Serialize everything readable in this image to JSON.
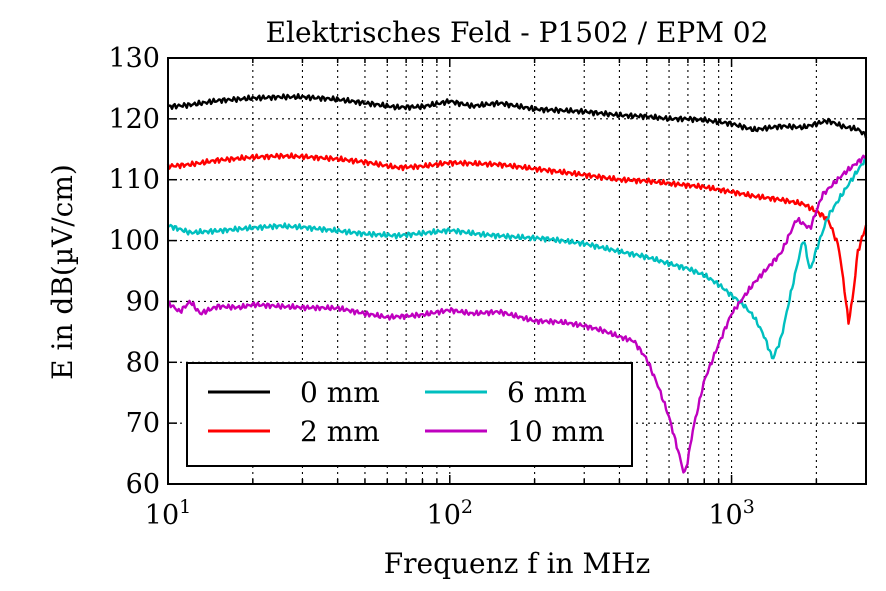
{
  "chart_data": {
    "type": "line",
    "title": "Elektrisches Feld - P1502 / EPM 02",
    "xlabel": "Frequenz f in MHz",
    "ylabel": "E in dB(µV/cm)",
    "xscale": "log",
    "xlim": [
      10,
      3000
    ],
    "ylim": [
      60,
      130
    ],
    "grid": true,
    "legend_position": "lower-left",
    "y_ticks": [
      "60",
      "70",
      "80",
      "90",
      "100",
      "110",
      "120",
      "130"
    ],
    "x_ticks": [
      {
        "base": "10",
        "exp": "1",
        "value": 10
      },
      {
        "base": "10",
        "exp": "2",
        "value": 100
      },
      {
        "base": "10",
        "exp": "3",
        "value": 1000
      }
    ],
    "series": [
      {
        "name": "0 mm",
        "color": "#000000",
        "x": [
          10,
          12,
          15,
          20,
          25,
          30,
          40,
          50,
          65,
          80,
          100,
          120,
          150,
          200,
          300,
          400,
          500,
          600,
          700,
          800,
          1000,
          1200,
          1500,
          1800,
          2000,
          2200,
          2500,
          2800,
          3000
        ],
        "y": [
          122.0,
          122.3,
          123.0,
          123.4,
          123.6,
          123.6,
          123.2,
          122.6,
          121.9,
          122.0,
          122.9,
          122.1,
          122.6,
          121.6,
          121.2,
          120.6,
          120.4,
          120.0,
          120.0,
          119.8,
          119.2,
          118.2,
          118.8,
          118.6,
          119.2,
          119.7,
          118.7,
          118.3,
          117.3
        ]
      },
      {
        "name": "2 mm",
        "color": "#ff0000",
        "x": [
          10,
          12,
          15,
          20,
          25,
          30,
          40,
          50,
          65,
          80,
          100,
          150,
          200,
          300,
          400,
          500,
          600,
          800,
          1000,
          1200,
          1500,
          1800,
          2000,
          2200,
          2400,
          2500,
          2600,
          2700,
          2800,
          3000
        ],
        "y": [
          112.2,
          112.5,
          113.2,
          113.7,
          113.9,
          113.8,
          113.4,
          112.9,
          112.0,
          112.2,
          112.8,
          112.5,
          111.8,
          110.8,
          110.0,
          109.8,
          109.4,
          108.8,
          108.0,
          107.3,
          106.7,
          106.0,
          104.8,
          103.5,
          99.0,
          93.0,
          86.5,
          91.0,
          98.0,
          102.5
        ]
      },
      {
        "name": "6 mm",
        "color": "#00bfbf",
        "x": [
          10,
          12,
          15,
          20,
          25,
          30,
          40,
          50,
          65,
          80,
          100,
          130,
          170,
          220,
          300,
          400,
          500,
          600,
          700,
          800,
          900,
          1000,
          1100,
          1200,
          1300,
          1400,
          1500,
          1600,
          1700,
          1800,
          1900,
          2000,
          2200,
          2500,
          2800,
          3000
        ],
        "y": [
          102.5,
          101.3,
          101.6,
          102.1,
          102.4,
          102.2,
          101.6,
          101.1,
          100.8,
          101.2,
          101.7,
          101.0,
          100.6,
          100.3,
          99.5,
          98.2,
          97.3,
          96.2,
          95.4,
          94.3,
          92.8,
          91.0,
          89.5,
          87.5,
          84.5,
          80.5,
          84.0,
          90.0,
          95.5,
          100.4,
          95.0,
          98.5,
          104.0,
          108.0,
          111.5,
          113.5
        ]
      },
      {
        "name": "10 mm",
        "color": "#bf00bf",
        "x": [
          10,
          11,
          12,
          13,
          15,
          18,
          20,
          25,
          30,
          40,
          50,
          60,
          70,
          80,
          100,
          120,
          150,
          200,
          250,
          300,
          350,
          400,
          450,
          500,
          550,
          600,
          650,
          680,
          700,
          730,
          760,
          800,
          900,
          1000,
          1200,
          1500,
          1700,
          1900,
          2100,
          2500,
          3000
        ],
        "y": [
          89.8,
          88.3,
          90.0,
          88.0,
          89.2,
          89.0,
          89.5,
          89.2,
          89.0,
          88.9,
          88.0,
          87.4,
          87.6,
          87.8,
          88.6,
          88.0,
          88.3,
          86.8,
          86.6,
          86.0,
          85.2,
          84.2,
          83.5,
          80.5,
          76.0,
          71.0,
          65.0,
          61.5,
          64.0,
          69.0,
          72.5,
          77.0,
          83.0,
          88.0,
          93.0,
          98.0,
          103.5,
          102.0,
          107.5,
          111.0,
          114.0
        ]
      }
    ]
  }
}
